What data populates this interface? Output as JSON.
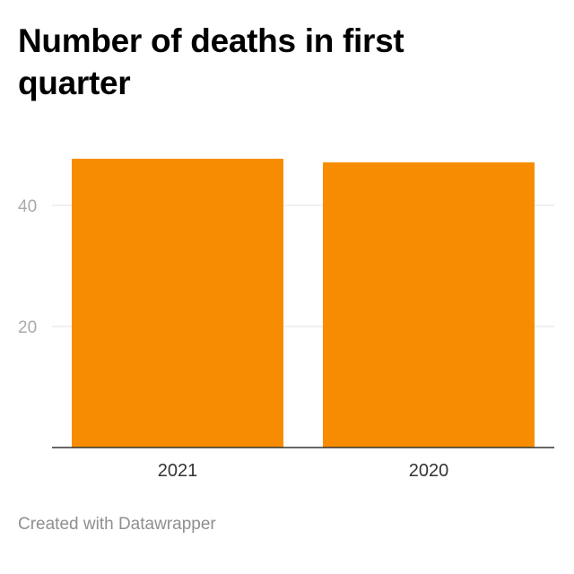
{
  "chart_data": {
    "type": "bar",
    "title": "Number of deaths in first quarter",
    "categories": [
      "2021",
      "2020"
    ],
    "values": [
      47.7,
      47.1
    ],
    "ylim": [
      0,
      50
    ],
    "yticks": [
      20,
      40
    ],
    "grid": true,
    "xlabel": "",
    "ylabel": ""
  },
  "colors": {
    "bar": "#f88c00",
    "grid": "#e0e0e0",
    "axis": "#333333",
    "tick_label": "#a9a9a9",
    "category_label": "#333333"
  },
  "footer": {
    "credit": "Created with Datawrapper"
  }
}
